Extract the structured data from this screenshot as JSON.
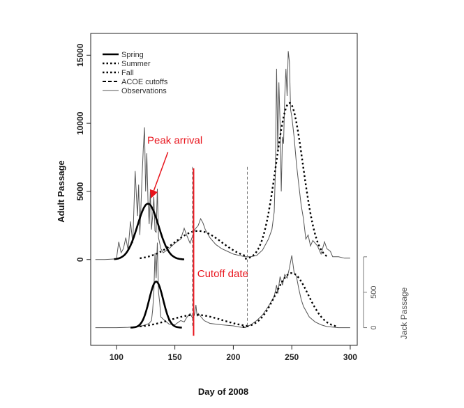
{
  "chart_data": {
    "type": "line",
    "xlabel": "Day of 2008",
    "ylabel": "Adult Passage",
    "y2label": "Jack Passage",
    "xlim": [
      78,
      306
    ],
    "xticks": [
      100,
      150,
      200,
      250,
      300
    ],
    "ylim": [
      -6300,
      16600
    ],
    "yticks": [
      0,
      5000,
      10000,
      15000
    ],
    "y2ticks": [
      0,
      500
    ],
    "jack_panel": {
      "baseline_adult_units": -5000,
      "adult_units_per_jack": 5.2,
      "tick_marks": [
        0,
        500,
        1000
      ]
    },
    "legend": {
      "position": "top-left",
      "entries": [
        {
          "label": "Spring",
          "style": "thick-solid"
        },
        {
          "label": "Summer",
          "style": "dotted"
        },
        {
          "label": "Fall",
          "style": "dotted"
        },
        {
          "label": "ACOE cutoffs",
          "style": "dashed"
        },
        {
          "label": "Observations",
          "style": "thin-solid"
        }
      ]
    },
    "acoe_cutoffs": [
      165,
      212
    ],
    "cutoff_date": 166,
    "annotations": [
      {
        "text": "Peak arrival",
        "x": 150,
        "y": 8500,
        "arrow_to": [
          130,
          4600
        ]
      },
      {
        "text": "Cutoff date",
        "x": 191,
        "y": -1300
      }
    ],
    "adult": {
      "observations": [
        [
          82,
          0
        ],
        [
          90,
          0
        ],
        [
          100,
          50
        ],
        [
          102,
          1300
        ],
        [
          104,
          500
        ],
        [
          106,
          800
        ],
        [
          108,
          1600
        ],
        [
          110,
          700
        ],
        [
          112,
          2800
        ],
        [
          114,
          1200
        ],
        [
          116,
          6500
        ],
        [
          118,
          3200
        ],
        [
          119,
          5500
        ],
        [
          120,
          1800
        ],
        [
          122,
          6200
        ],
        [
          123,
          8200
        ],
        [
          124,
          9700
        ],
        [
          125,
          5000
        ],
        [
          126,
          7800
        ],
        [
          127,
          4300
        ],
        [
          128,
          2600
        ],
        [
          129,
          5000
        ],
        [
          130,
          2200
        ],
        [
          131,
          3200
        ],
        [
          132,
          4600
        ],
        [
          133,
          2100
        ],
        [
          134,
          2000
        ],
        [
          135,
          5200
        ],
        [
          136,
          1600
        ],
        [
          138,
          800
        ],
        [
          140,
          500
        ],
        [
          145,
          800
        ],
        [
          150,
          1200
        ],
        [
          155,
          1500
        ],
        [
          158,
          2300
        ],
        [
          160,
          1800
        ],
        [
          163,
          1200
        ],
        [
          165,
          1700
        ],
        [
          167,
          2200
        ],
        [
          170,
          2500
        ],
        [
          172,
          3000
        ],
        [
          174,
          2700
        ],
        [
          176,
          2200
        ],
        [
          180,
          1600
        ],
        [
          185,
          1100
        ],
        [
          190,
          800
        ],
        [
          195,
          600
        ],
        [
          200,
          400
        ],
        [
          205,
          300
        ],
        [
          210,
          200
        ],
        [
          215,
          200
        ],
        [
          220,
          300
        ],
        [
          225,
          700
        ],
        [
          230,
          1500
        ],
        [
          233,
          2200
        ],
        [
          235,
          3500
        ],
        [
          236,
          6500
        ],
        [
          237,
          14000
        ],
        [
          238,
          8000
        ],
        [
          239,
          13000
        ],
        [
          240,
          10000
        ],
        [
          241,
          5000
        ],
        [
          242,
          9000
        ],
        [
          243,
          8500
        ],
        [
          244,
          12000
        ],
        [
          245,
          14000
        ],
        [
          246,
          12000
        ],
        [
          247,
          15300
        ],
        [
          248,
          14500
        ],
        [
          249,
          11000
        ],
        [
          250,
          10500
        ],
        [
          252,
          9000
        ],
        [
          254,
          7000
        ],
        [
          256,
          5500
        ],
        [
          258,
          4000
        ],
        [
          260,
          3000
        ],
        [
          262,
          1500
        ],
        [
          264,
          1800
        ],
        [
          266,
          1000
        ],
        [
          268,
          1400
        ],
        [
          270,
          1200
        ],
        [
          272,
          1000
        ],
        [
          275,
          400
        ],
        [
          278,
          1300
        ],
        [
          280,
          800
        ],
        [
          283,
          600
        ],
        [
          285,
          200
        ],
        [
          290,
          200
        ],
        [
          295,
          100
        ],
        [
          300,
          100
        ]
      ],
      "spring_fit": {
        "center": 127,
        "sd": 9,
        "peak": 4100,
        "range": [
          98,
          158
        ]
      },
      "summer_fit": {
        "center": 170,
        "sd": 20,
        "peak": 2100,
        "range": [
          120,
          212
        ]
      },
      "fall_fit": {
        "center": 248,
        "sd": 11.5,
        "peak": 11500,
        "range": [
          210,
          280
        ]
      }
    },
    "jack": {
      "observations": [
        [
          82,
          0
        ],
        [
          100,
          0
        ],
        [
          110,
          5
        ],
        [
          115,
          10
        ],
        [
          120,
          15
        ],
        [
          125,
          40
        ],
        [
          128,
          60
        ],
        [
          130,
          100
        ],
        [
          131,
          250
        ],
        [
          132,
          500
        ],
        [
          133,
          1050
        ],
        [
          134,
          700
        ],
        [
          135,
          1200
        ],
        [
          136,
          500
        ],
        [
          137,
          350
        ],
        [
          138,
          150
        ],
        [
          140,
          120
        ],
        [
          145,
          50
        ],
        [
          150,
          40
        ],
        [
          155,
          100
        ],
        [
          158,
          80
        ],
        [
          160,
          140
        ],
        [
          163,
          200
        ],
        [
          165,
          140
        ],
        [
          167,
          200
        ],
        [
          168,
          320
        ],
        [
          169,
          160
        ],
        [
          170,
          200
        ],
        [
          175,
          100
        ],
        [
          180,
          60
        ],
        [
          190,
          40
        ],
        [
          200,
          25
        ],
        [
          205,
          10
        ],
        [
          210,
          0
        ],
        [
          215,
          40
        ],
        [
          220,
          100
        ],
        [
          225,
          180
        ],
        [
          230,
          300
        ],
        [
          235,
          440
        ],
        [
          237,
          600
        ],
        [
          238,
          480
        ],
        [
          240,
          720
        ],
        [
          242,
          600
        ],
        [
          244,
          750
        ],
        [
          246,
          700
        ],
        [
          248,
          840
        ],
        [
          250,
          1020
        ],
        [
          252,
          780
        ],
        [
          254,
          720
        ],
        [
          256,
          550
        ],
        [
          258,
          400
        ],
        [
          260,
          300
        ],
        [
          265,
          150
        ],
        [
          270,
          80
        ],
        [
          275,
          40
        ],
        [
          280,
          15
        ],
        [
          290,
          0
        ],
        [
          300,
          0
        ]
      ],
      "spring_fit": {
        "center": 134,
        "sd": 6,
        "peak": 650,
        "range": [
          112,
          156
        ]
      },
      "summer_fit": {
        "center": 168,
        "sd": 22,
        "peak": 180,
        "range": [
          120,
          212
        ]
      },
      "fall_fit": {
        "center": 250,
        "sd": 14,
        "peak": 770,
        "range": [
          208,
          288
        ]
      }
    }
  }
}
